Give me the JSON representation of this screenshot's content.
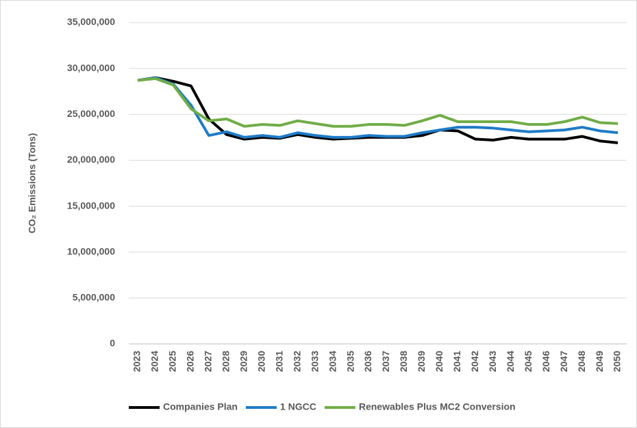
{
  "chart_data": {
    "type": "line",
    "y_label": "CO₂ Emissions (Tons)",
    "categories": [
      "2023",
      "2024",
      "2025",
      "2026",
      "2027",
      "2028",
      "2029",
      "2030",
      "2031",
      "2032",
      "2033",
      "2034",
      "2035",
      "2036",
      "2037",
      "2038",
      "2039",
      "2040",
      "2041",
      "2042",
      "2043",
      "2044",
      "2045",
      "2046",
      "2047",
      "2048",
      "2049",
      "2050"
    ],
    "series": [
      {
        "name": "Companies Plan",
        "color": "#000000",
        "values": [
          28700000,
          29000000,
          28600000,
          28100000,
          24500000,
          22800000,
          22300000,
          22500000,
          22400000,
          22800000,
          22500000,
          22300000,
          22400000,
          22500000,
          22500000,
          22500000,
          22700000,
          23300000,
          23200000,
          22300000,
          22200000,
          22500000,
          22300000,
          22300000,
          22300000,
          22600000,
          22100000,
          21900000
        ]
      },
      {
        "name": "1 NGCC",
        "color": "#1f7bc6",
        "values": [
          28700000,
          29000000,
          28300000,
          26000000,
          22700000,
          23100000,
          22500000,
          22700000,
          22500000,
          23000000,
          22700000,
          22500000,
          22500000,
          22700000,
          22600000,
          22600000,
          23000000,
          23300000,
          23600000,
          23600000,
          23500000,
          23300000,
          23100000,
          23200000,
          23300000,
          23600000,
          23200000,
          23000000
        ]
      },
      {
        "name": "Renewables Plus MC2 Conversion",
        "color": "#70ad47",
        "values": [
          28700000,
          28900000,
          28200000,
          25600000,
          24300000,
          24500000,
          23700000,
          23900000,
          23800000,
          24300000,
          24000000,
          23700000,
          23700000,
          23900000,
          23900000,
          23800000,
          24300000,
          24900000,
          24200000,
          24200000,
          24200000,
          24200000,
          23900000,
          23900000,
          24200000,
          24700000,
          24100000,
          24000000
        ]
      }
    ],
    "ylim": [
      0,
      35000000
    ],
    "yticks": [
      0,
      {
        "value": 5000000,
        "label": "5,000,000"
      },
      {
        "value": 10000000,
        "label": "10,000,000"
      },
      {
        "value": 15000000,
        "label": "15,000,000"
      },
      {
        "value": 20000000,
        "label": "20,000,000"
      },
      {
        "value": 25000000,
        "label": "25,000,000"
      },
      {
        "value": 30000000,
        "label": "30,000,000"
      },
      {
        "value": 35000000,
        "label": "35,000,000"
      }
    ],
    "grid": true,
    "legend": "bottom"
  }
}
